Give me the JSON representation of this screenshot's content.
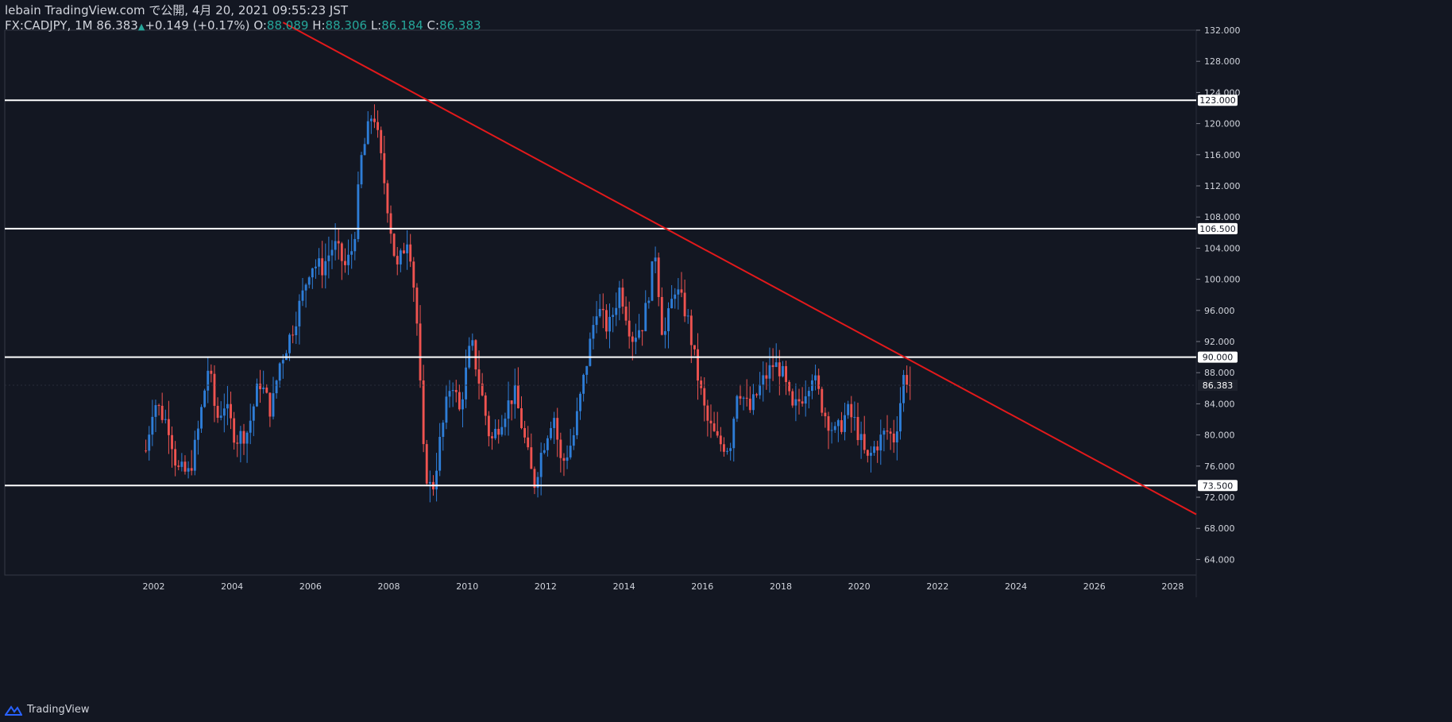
{
  "header": {
    "publisher_line": "lebain TradingView.com で公開, 4月 20, 2021 09:55:23 JST",
    "symbol": "FX:CADJPY, 1M",
    "last": "86.383",
    "change": "+0.149 (+0.17%)",
    "o_label": "O:",
    "o_value": "88.089",
    "h_label": "H:",
    "h_value": "88.306",
    "l_label": "L:",
    "l_value": "86.184",
    "c_label": "C:",
    "c_value": "86.383"
  },
  "footer": {
    "brand": "TradingView"
  },
  "colors": {
    "background": "#131722",
    "up": "#2e7dd7",
    "down": "#ef5350",
    "trendline": "#e3191b",
    "level": "#ffffff",
    "text": "#d1d4dc"
  },
  "chart_data": {
    "type": "candlestick",
    "y_range": [
      62,
      132
    ],
    "x_range": [
      1998.2,
      2028.6
    ],
    "y_ticks": [
      "64.000",
      "68.000",
      "72.000",
      "76.000",
      "80.000",
      "84.000",
      "88.000",
      "92.000",
      "96.000",
      "100.000",
      "104.000",
      "108.000",
      "112.000",
      "116.000",
      "120.000",
      "124.000",
      "128.000",
      "132.000"
    ],
    "x_ticks": [
      "2002",
      "2004",
      "2006",
      "2008",
      "2010",
      "2012",
      "2014",
      "2016",
      "2018",
      "2020",
      "2022",
      "2024",
      "2026",
      "2028"
    ],
    "horizontal_levels": [
      {
        "value": 123.0,
        "label": "123.000"
      },
      {
        "value": 106.5,
        "label": "106.500"
      },
      {
        "value": 90.0,
        "label": "90.000"
      },
      {
        "value": 73.5,
        "label": "73.500"
      }
    ],
    "last_price": {
      "value": 86.383,
      "label": "86.383"
    },
    "trendline": {
      "x1": 2005.3,
      "y1": 133.0,
      "x2": 2028.6,
      "y2": 69.8
    },
    "path_points": [
      [
        2001.8,
        78.0
      ],
      [
        2002.0,
        84.5
      ],
      [
        2002.4,
        81.0
      ],
      [
        2002.6,
        75.5
      ],
      [
        2002.9,
        75.0
      ],
      [
        2003.1,
        79.5
      ],
      [
        2003.4,
        89.0
      ],
      [
        2003.6,
        82.0
      ],
      [
        2003.8,
        84.0
      ],
      [
        2004.1,
        79.5
      ],
      [
        2004.4,
        80.5
      ],
      [
        2004.7,
        87.0
      ],
      [
        2005.0,
        83.0
      ],
      [
        2005.2,
        89.0
      ],
      [
        2005.5,
        93.0
      ],
      [
        2005.8,
        98.0
      ],
      [
        2006.0,
        102.0
      ],
      [
        2006.3,
        101.5
      ],
      [
        2006.6,
        104.5
      ],
      [
        2006.9,
        101.5
      ],
      [
        2007.1,
        104.5
      ],
      [
        2007.3,
        115.5
      ],
      [
        2007.6,
        122.0
      ],
      [
        2007.9,
        112.0
      ],
      [
        2008.2,
        101.0
      ],
      [
        2008.5,
        106.0
      ],
      [
        2008.7,
        96.0
      ],
      [
        2008.9,
        76.0
      ],
      [
        2009.1,
        72.5
      ],
      [
        2009.3,
        79.0
      ],
      [
        2009.6,
        87.5
      ],
      [
        2009.8,
        83.0
      ],
      [
        2010.1,
        92.0
      ],
      [
        2010.3,
        87.0
      ],
      [
        2010.6,
        79.0
      ],
      [
        2010.9,
        82.5
      ],
      [
        2011.2,
        85.5
      ],
      [
        2011.4,
        81.0
      ],
      [
        2011.7,
        73.5
      ],
      [
        2011.9,
        78.0
      ],
      [
        2012.2,
        83.0
      ],
      [
        2012.4,
        76.0
      ],
      [
        2012.7,
        79.5
      ],
      [
        2013.0,
        88.0
      ],
      [
        2013.3,
        96.5
      ],
      [
        2013.6,
        93.5
      ],
      [
        2013.9,
        99.0
      ],
      [
        2014.2,
        92.5
      ],
      [
        2014.5,
        94.5
      ],
      [
        2014.8,
        103.5
      ],
      [
        2015.0,
        92.0
      ],
      [
        2015.3,
        99.0
      ],
      [
        2015.6,
        95.5
      ],
      [
        2015.9,
        87.0
      ],
      [
        2016.1,
        82.0
      ],
      [
        2016.4,
        79.0
      ],
      [
        2016.7,
        78.5
      ],
      [
        2016.9,
        86.5
      ],
      [
        2017.2,
        83.0
      ],
      [
        2017.5,
        86.5
      ],
      [
        2017.8,
        89.0
      ],
      [
        2018.0,
        88.5
      ],
      [
        2018.3,
        83.0
      ],
      [
        2018.6,
        85.5
      ],
      [
        2018.8,
        88.0
      ],
      [
        2019.1,
        83.0
      ],
      [
        2019.4,
        80.0
      ],
      [
        2019.7,
        83.0
      ],
      [
        2019.9,
        81.5
      ],
      [
        2020.2,
        76.5
      ],
      [
        2020.4,
        78.5
      ],
      [
        2020.7,
        80.5
      ],
      [
        2020.9,
        79.5
      ],
      [
        2021.0,
        82.5
      ],
      [
        2021.15,
        88.0
      ],
      [
        2021.3,
        86.4
      ]
    ]
  }
}
